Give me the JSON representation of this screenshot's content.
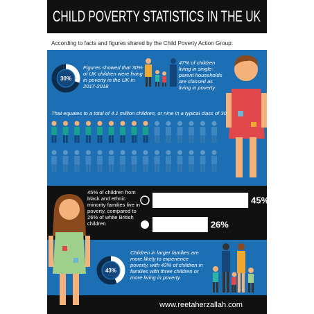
{
  "title": "CHILD POVERTY STATISTICS IN THE UK",
  "intro": "According to facts and figures shared by the Child Poverty Action Group:",
  "uk_poverty": {
    "percent": {
      "value": 30,
      "label": "30%"
    },
    "text": "Figures showed that 30% of UK children were living in poverty in the UK in 2017-2018"
  },
  "single_parent": {
    "text": "47% of children living in single-parent households are classed as living in poverty"
  },
  "class_note": "That equates to a total of 4.1 million children, or nine in a typical class of 30",
  "ethnic": {
    "text": "45% of children from black and ethnic minority families live in poverty, compared to 26% of white British children",
    "bars": [
      {
        "value": 45,
        "label": "45%"
      },
      {
        "value": 26,
        "label": "26%"
      }
    ]
  },
  "large_families": {
    "percent": {
      "value": 43,
      "label": "43%"
    },
    "text": "Children in larger families are more likely to experience poverty, with 43% of children in families with three children or more living in poverty"
  },
  "footer": "www.reetaherzallah.com"
}
